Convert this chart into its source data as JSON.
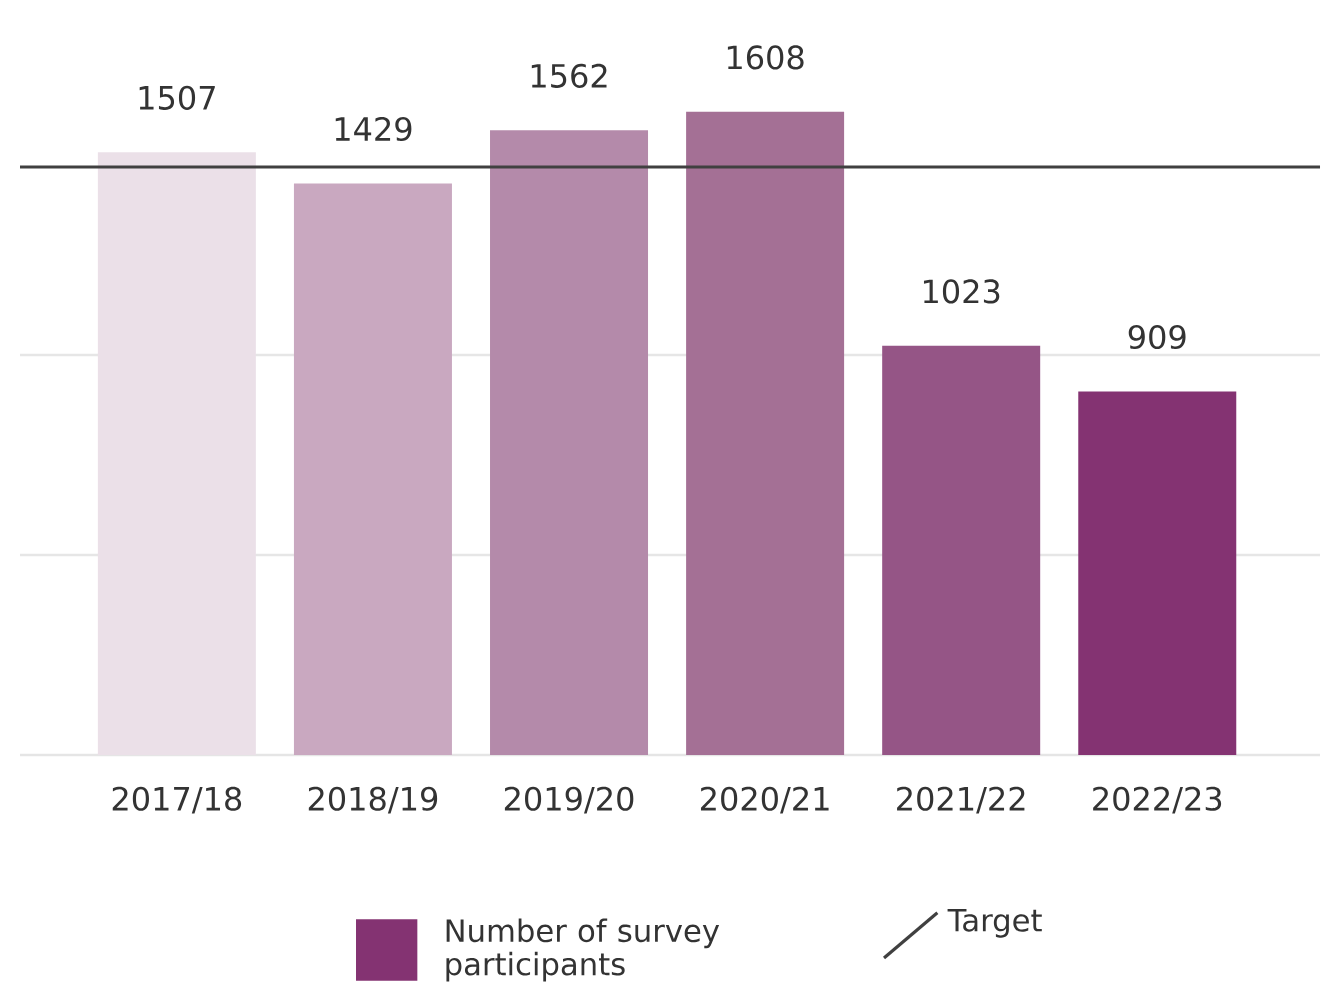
{
  "chart_data": {
    "type": "bar",
    "categories": [
      "2017/18",
      "2018/19",
      "2019/20",
      "2020/21",
      "2021/22",
      "2022/23"
    ],
    "series": [
      {
        "name": "Number of survey participants",
        "color": "#843372",
        "colors": [
          "#ebe0e8",
          "#c9a8c0",
          "#b48aaa",
          "#a47095",
          "#955586",
          "#843372"
        ],
        "values": [
          1507,
          1429,
          1562,
          1608,
          1023,
          909
        ]
      }
    ],
    "tick_labels": "x",
    "data_labels": true,
    "legend": "bottom",
    "ref_lines": [
      {
        "axis": "y",
        "value": 1470,
        "label": "Target",
        "color": "#404040"
      },
      {
        "axis": "y",
        "value": 500,
        "label": null,
        "color": "#e6e6e6"
      },
      {
        "axis": "y",
        "value": 1000,
        "label": null,
        "color": "#e6e6e6"
      }
    ]
  }
}
